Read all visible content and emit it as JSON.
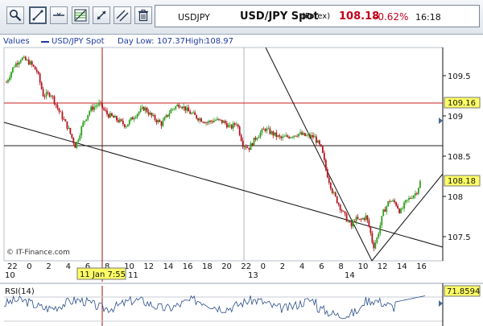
{
  "toolbar": {
    "tools": [
      {
        "name": "zoom-tool-button",
        "icon": "magnifier-icon"
      },
      {
        "name": "trend-line-tool-button",
        "icon": "diagonal-line-icon"
      },
      {
        "name": "horizontal-line-tool-button",
        "icon": "horizontal-line-icon"
      },
      {
        "name": "fibonacci-tool-button",
        "icon": "fibonacci-chart-icon"
      },
      {
        "name": "crosshair-tool-button",
        "icon": "arrows-icon"
      },
      {
        "name": "parallel-lines-tool-button",
        "icon": "parallel-lines-icon"
      },
      {
        "name": "delete-tool-button",
        "icon": "trash-icon"
      }
    ],
    "active_tool": "trend-line-tool-button"
  },
  "quote": {
    "symbol": "USDJPY",
    "name": "USD/JPY Spot",
    "exchange": "(Forex)",
    "price": "108.18",
    "change": "-0.62%",
    "time": "16:18"
  },
  "legend": {
    "values_label": "Values",
    "series_name": "USD/JPY Spot",
    "day_low_label": "Day Low:",
    "day_low": "107.37",
    "high_label": "High:",
    "high": "108.97"
  },
  "colors": {
    "up_candle": "#2e9e1e",
    "down_candle": "#b3141e",
    "horizontal_red_line": "#c81e1e",
    "cursor_line": "#a01010",
    "price_label_bg": "#ffff66",
    "rsi_line": "#2a4d8a"
  },
  "watermark": "© IT-Finance.com",
  "crosshair_label": "11 Jan 7:55",
  "rsi_label": "RSI(14)",
  "rsi_value": "71.8594",
  "price_axis_labels": [
    "109.5",
    "109",
    "108.5",
    "108",
    "107.5"
  ],
  "price_axis_markers": [
    "109.16",
    "108.18"
  ],
  "chart_data": {
    "type": "candlestick",
    "instrument": "USD/JPY Spot",
    "ylim": [
      107.2,
      109.85
    ],
    "y_ticks": [
      109.5,
      109.0,
      108.5,
      108.0,
      107.5
    ],
    "x_tick_labels": [
      "22",
      "0",
      "2",
      "4",
      "6",
      "8",
      "10",
      "12",
      "14",
      "16",
      "18",
      "20",
      "22",
      "0",
      "2",
      "4",
      "6",
      "8",
      "10",
      "12",
      "14",
      "16"
    ],
    "x_date_labels": [
      "10",
      "11",
      "13",
      "14"
    ],
    "horizontal_lines": [
      109.16,
      108.62
    ],
    "current_price": 108.18,
    "price_path": [
      [
        0,
        109.42
      ],
      [
        0.6,
        109.62
      ],
      [
        1.2,
        109.72
      ],
      [
        1.9,
        109.66
      ],
      [
        2.5,
        109.55
      ],
      [
        3.0,
        109.25
      ],
      [
        3.6,
        109.28
      ],
      [
        4.3,
        109.05
      ],
      [
        5.0,
        108.85
      ],
      [
        5.6,
        108.62
      ],
      [
        6.2,
        108.9
      ],
      [
        6.8,
        109.08
      ],
      [
        7.5,
        109.15
      ],
      [
        8.2,
        109.02
      ],
      [
        9.0,
        108.95
      ],
      [
        9.7,
        108.88
      ],
      [
        10.5,
        109.02
      ],
      [
        11.2,
        109.1
      ],
      [
        11.9,
        108.98
      ],
      [
        12.6,
        108.9
      ],
      [
        13.4,
        109.08
      ],
      [
        14.1,
        109.15
      ],
      [
        14.8,
        109.05
      ],
      [
        15.5,
        108.98
      ],
      [
        16.3,
        108.92
      ],
      [
        17.0,
        108.95
      ],
      [
        17.7,
        108.92
      ],
      [
        18.2,
        108.85
      ],
      [
        18.7,
        108.92
      ],
      [
        19.2,
        108.65
      ],
      [
        19.7,
        108.6
      ],
      [
        20.3,
        108.74
      ],
      [
        21.0,
        108.84
      ],
      [
        21.6,
        108.78
      ],
      [
        22.3,
        108.72
      ],
      [
        23.0,
        108.75
      ],
      [
        23.7,
        108.78
      ],
      [
        24.3,
        108.75
      ],
      [
        25.0,
        108.74
      ],
      [
        25.6,
        108.58
      ],
      [
        26.0,
        108.3
      ],
      [
        26.5,
        108.05
      ],
      [
        27.0,
        107.9
      ],
      [
        27.4,
        107.78
      ],
      [
        27.7,
        107.7
      ],
      [
        28.0,
        107.62
      ],
      [
        28.3,
        107.72
      ],
      [
        28.7,
        107.7
      ],
      [
        29.2,
        107.75
      ],
      [
        29.5,
        107.6
      ],
      [
        29.8,
        107.37
      ],
      [
        30.1,
        107.48
      ],
      [
        30.6,
        107.8
      ],
      [
        31.1,
        107.95
      ],
      [
        31.6,
        107.92
      ],
      [
        32.0,
        107.8
      ],
      [
        32.4,
        107.92
      ],
      [
        32.9,
        108.0
      ],
      [
        33.3,
        108.05
      ],
      [
        33.6,
        108.18
      ]
    ],
    "x_range": [
      0,
      34
    ],
    "rsi_value": 71.8594
  }
}
